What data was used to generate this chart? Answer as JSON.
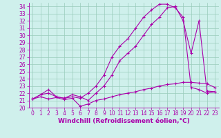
{
  "xlabel": "Windchill (Refroidissement éolien,°C)",
  "bg_color": "#cff0ec",
  "line_color": "#aa00aa",
  "grid_color": "#99ccbb",
  "xlim": [
    -0.5,
    23.5
  ],
  "ylim": [
    20,
    34.5
  ],
  "yticks": [
    20,
    21,
    22,
    23,
    24,
    25,
    26,
    27,
    28,
    29,
    30,
    31,
    32,
    33,
    34
  ],
  "xticks": [
    0,
    1,
    2,
    3,
    4,
    5,
    6,
    7,
    8,
    9,
    10,
    11,
    12,
    13,
    14,
    15,
    16,
    17,
    18,
    19,
    20,
    21,
    22,
    23
  ],
  "tick_fontsize": 5.5,
  "label_fontsize": 6.5,
  "line1_x": [
    0,
    1,
    2,
    3,
    4,
    5,
    6,
    7,
    8,
    9,
    10,
    11,
    12,
    13,
    14,
    15,
    16,
    17,
    18,
    19,
    20,
    21,
    22,
    23
  ],
  "line1_y": [
    21.2,
    21.5,
    21.2,
    21.4,
    21.1,
    21.3,
    20.2,
    20.5,
    21.0,
    21.2,
    21.5,
    21.8,
    22.0,
    22.2,
    22.5,
    22.7,
    23.0,
    23.2,
    23.3,
    23.5,
    23.5,
    23.4,
    23.3,
    22.8
  ],
  "line2_x": [
    0,
    1,
    2,
    3,
    4,
    5,
    6,
    7,
    8,
    9,
    10,
    11,
    12,
    13,
    14,
    15,
    16,
    17,
    18,
    19,
    20,
    21,
    22,
    23
  ],
  "line2_y": [
    21.2,
    21.8,
    22.0,
    21.5,
    21.3,
    21.5,
    21.3,
    22.0,
    23.0,
    24.5,
    27.0,
    28.5,
    29.5,
    31.0,
    32.5,
    33.5,
    34.3,
    34.3,
    33.8,
    32.5,
    22.8,
    22.5,
    22.0,
    22.2
  ],
  "line3_x": [
    0,
    1,
    2,
    3,
    4,
    5,
    6,
    7,
    8,
    9,
    10,
    11,
    12,
    13,
    14,
    15,
    16,
    17,
    18,
    19,
    20,
    21,
    22,
    23
  ],
  "line3_y": [
    21.2,
    21.8,
    22.5,
    21.5,
    21.3,
    21.8,
    21.5,
    21.0,
    22.0,
    23.0,
    24.5,
    26.5,
    27.5,
    28.5,
    30.0,
    31.5,
    32.5,
    33.8,
    34.0,
    32.0,
    27.5,
    32.0,
    22.3,
    22.2
  ]
}
